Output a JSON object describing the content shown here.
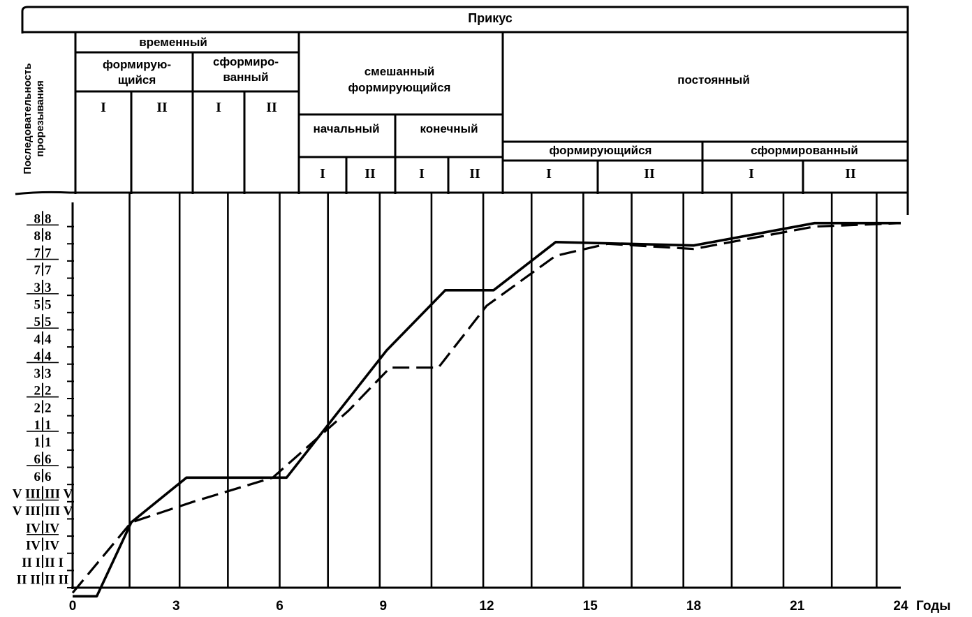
{
  "header": {
    "title": "Прикус",
    "row_axis_label_line1": "Последовательность",
    "row_axis_label_line2": "прорезывания",
    "temporary": {
      "label": "временный",
      "forming": {
        "line1": "формирую-",
        "line2": "щийся"
      },
      "formed": {
        "line1": "сформиро-",
        "line2": "ванный"
      },
      "subperiods": [
        "I",
        "II",
        "I",
        "II"
      ]
    },
    "mixed": {
      "line1": "смешанный",
      "line2": "формирующийся",
      "initial": "начальный",
      "final": "конечный",
      "subperiods": [
        "I",
        "II",
        "I",
        "II"
      ]
    },
    "permanent": {
      "label": "постоянный",
      "forming": "формирующийся",
      "formed": "сформированный",
      "subperiods": [
        "I",
        "II",
        "I",
        "II"
      ]
    }
  },
  "chart_data": {
    "type": "line",
    "xlabel": "Годы",
    "xlim": [
      0,
      24
    ],
    "x_ticks": [
      0,
      3,
      6,
      9,
      12,
      15,
      18,
      21,
      24
    ],
    "y_categories": [
      {
        "left": "II II",
        "right": "II II",
        "pair": false
      },
      {
        "left": "II I",
        "right": "II I",
        "pair": false
      },
      {
        "left": "IV",
        "right": "IV",
        "pair": true
      },
      {
        "left": "IV",
        "right": "IV",
        "pair": true
      },
      {
        "left": "V III",
        "right": "III V",
        "pair": true
      },
      {
        "left": "V III",
        "right": "III V",
        "pair": true
      },
      {
        "left": "6",
        "right": "6",
        "pair": true
      },
      {
        "left": "6",
        "right": "6",
        "pair": true
      },
      {
        "left": "1",
        "right": "1",
        "pair": true
      },
      {
        "left": "1",
        "right": "1",
        "pair": true
      },
      {
        "left": "2",
        "right": "2",
        "pair": true
      },
      {
        "left": "2",
        "right": "2",
        "pair": true
      },
      {
        "left": "3",
        "right": "3",
        "pair": true
      },
      {
        "left": "4",
        "right": "4",
        "pair": true
      },
      {
        "left": "4",
        "right": "4",
        "pair": true
      },
      {
        "left": "5",
        "right": "5",
        "pair": true
      },
      {
        "left": "5",
        "right": "5",
        "pair": true
      },
      {
        "left": "3",
        "right": "3",
        "pair": true
      },
      {
        "left": "7",
        "right": "7",
        "pair": true
      },
      {
        "left": "7",
        "right": "7",
        "pair": true
      },
      {
        "left": "8",
        "right": "8",
        "pair": true
      },
      {
        "left": "8",
        "right": "8",
        "pair": true
      }
    ],
    "series": [
      {
        "style": "solid",
        "x": [
          0,
          0.7,
          1.7,
          3.3,
          6.2,
          9.1,
          10.8,
          12.2,
          14,
          18,
          21.5,
          24
        ],
        "y": [
          -1,
          -1,
          3.3,
          5.9,
          5.9,
          13.3,
          16.8,
          16.8,
          19.6,
          19.4,
          20.7,
          20.7
        ]
      },
      {
        "style": "dashed",
        "x": [
          0,
          1.7,
          3.5,
          5.8,
          8,
          9.2,
          10.6,
          12,
          14,
          15.5,
          18,
          21.5,
          24
        ],
        "y": [
          -0.8,
          3.3,
          4.5,
          5.9,
          9.8,
          12.3,
          12.3,
          15.9,
          18.8,
          19.5,
          19.2,
          20.5,
          20.7
        ]
      }
    ],
    "grid": "vertical"
  }
}
